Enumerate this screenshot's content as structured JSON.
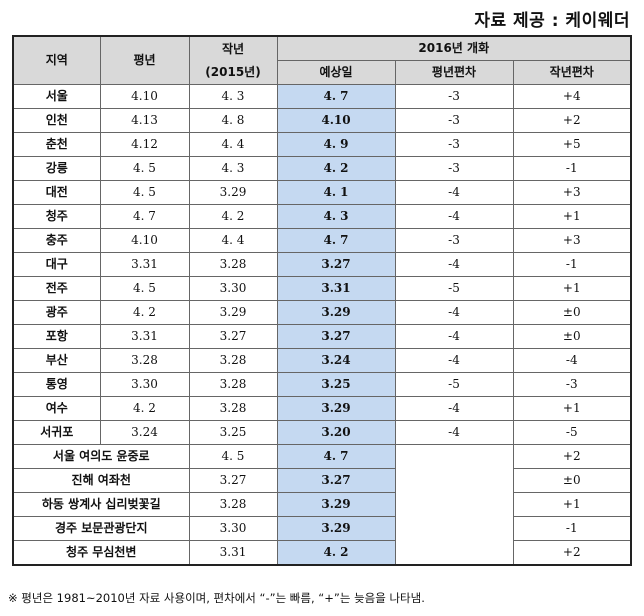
{
  "source_label": "자료 제공 : 케이웨더",
  "header": {
    "region": "지역",
    "normal": "평년",
    "last_year": "작년",
    "last_year_sub": "(2015년)",
    "group": "2016년 개화",
    "predicted": "예상일",
    "normal_diff": "평년편차",
    "last_year_diff": "작년편차"
  },
  "rows": [
    {
      "region": "서울",
      "normal": "4.10",
      "last": "4. 3",
      "pred": "4. 7",
      "ndiff": "-3",
      "ldiff": "+4"
    },
    {
      "region": "인천",
      "normal": "4.13",
      "last": "4. 8",
      "pred": "4.10",
      "ndiff": "-3",
      "ldiff": "+2"
    },
    {
      "region": "춘천",
      "normal": "4.12",
      "last": "4. 4",
      "pred": "4. 9",
      "ndiff": "-3",
      "ldiff": "+5"
    },
    {
      "region": "강릉",
      "normal": "4. 5",
      "last": "4. 3",
      "pred": "4. 2",
      "ndiff": "-3",
      "ldiff": "-1"
    },
    {
      "region": "대전",
      "normal": "4. 5",
      "last": "3.29",
      "pred": "4. 1",
      "ndiff": "-4",
      "ldiff": "+3"
    },
    {
      "region": "청주",
      "normal": "4. 7",
      "last": "4. 2",
      "pred": "4. 3",
      "ndiff": "-4",
      "ldiff": "+1"
    },
    {
      "region": "충주",
      "normal": "4.10",
      "last": "4. 4",
      "pred": "4. 7",
      "ndiff": "-3",
      "ldiff": "+3"
    },
    {
      "region": "대구",
      "normal": "3.31",
      "last": "3.28",
      "pred": "3.27",
      "ndiff": "-4",
      "ldiff": "-1"
    },
    {
      "region": "전주",
      "normal": "4. 5",
      "last": "3.30",
      "pred": "3.31",
      "ndiff": "-5",
      "ldiff": "+1"
    },
    {
      "region": "광주",
      "normal": "4. 2",
      "last": "3.29",
      "pred": "3.29",
      "ndiff": "-4",
      "ldiff": "±0"
    },
    {
      "region": "포항",
      "normal": "3.31",
      "last": "3.27",
      "pred": "3.27",
      "ndiff": "-4",
      "ldiff": "±0"
    },
    {
      "region": "부산",
      "normal": "3.28",
      "last": "3.28",
      "pred": "3.24",
      "ndiff": "-4",
      "ldiff": "-4"
    },
    {
      "region": "통영",
      "normal": "3.30",
      "last": "3.28",
      "pred": "3.25",
      "ndiff": "-5",
      "ldiff": "-3"
    },
    {
      "region": "여수",
      "normal": "4. 2",
      "last": "3.28",
      "pred": "3.29",
      "ndiff": "-4",
      "ldiff": "+1"
    },
    {
      "region": "서귀포",
      "normal": "3.24",
      "last": "3.25",
      "pred": "3.20",
      "ndiff": "-4",
      "ldiff": "-5"
    }
  ],
  "spots": [
    {
      "place": "서울 여의도 윤중로",
      "last": "4. 5",
      "pred": "4. 7",
      "ldiff": "+2"
    },
    {
      "place": "진해 여좌천",
      "last": "3.27",
      "pred": "3.27",
      "ldiff": "±0"
    },
    {
      "place": "하동 쌍계사 십리벚꽃길",
      "last": "3.28",
      "pred": "3.29",
      "ldiff": "+1"
    },
    {
      "place": "경주 보문관광단지",
      "last": "3.30",
      "pred": "3.29",
      "ldiff": "-1"
    },
    {
      "place": "청주 무심천변",
      "last": "3.31",
      "pred": "4. 2",
      "ldiff": "+2"
    }
  ],
  "footnote": "※ 평년은 1981~2010년 자료 사용이며, 편차에서 “-”는 빠름, “+”는 늦음을 나타냄."
}
